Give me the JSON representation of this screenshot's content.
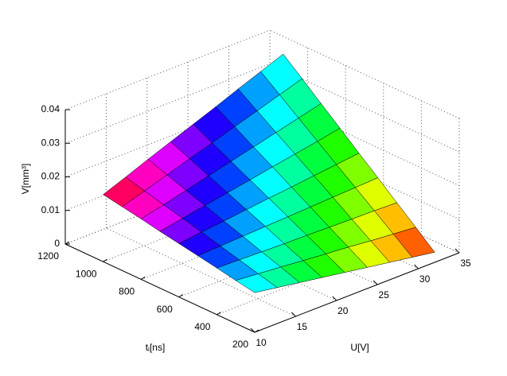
{
  "chart_data": {
    "type": "surface",
    "xlabel": "U[V]",
    "ylabel": "tᵢ[ns]",
    "zlabel": "V[mm³]",
    "x": [
      10,
      12.75,
      15.5,
      18.25,
      21,
      23.75,
      26.5,
      29.25,
      32
    ],
    "y": [
      200,
      300,
      400,
      500,
      600,
      700,
      800,
      900,
      1000
    ],
    "z": [
      [
        0.0118,
        0.0107,
        0.0096,
        0.0085,
        0.0074,
        0.0063,
        0.0052,
        0.0041,
        0.003
      ],
      [
        0.0128,
        0.0122,
        0.0116,
        0.0109,
        0.0103,
        0.0097,
        0.009,
        0.0084,
        0.0078
      ],
      [
        0.0139,
        0.0137,
        0.0135,
        0.0133,
        0.0132,
        0.013,
        0.0128,
        0.0127,
        0.0125
      ],
      [
        0.0149,
        0.0152,
        0.0155,
        0.0158,
        0.0161,
        0.0164,
        0.0167,
        0.017,
        0.0173
      ],
      [
        0.0159,
        0.0167,
        0.0174,
        0.0182,
        0.019,
        0.0197,
        0.0205,
        0.0212,
        0.022
      ],
      [
        0.0169,
        0.0182,
        0.0194,
        0.0206,
        0.0218,
        0.0231,
        0.0243,
        0.0255,
        0.0268
      ],
      [
        0.018,
        0.0196,
        0.0213,
        0.023,
        0.0247,
        0.0264,
        0.0281,
        0.0298,
        0.0315
      ],
      [
        0.019,
        0.0211,
        0.0233,
        0.0255,
        0.0276,
        0.0298,
        0.0319,
        0.0341,
        0.0363
      ],
      [
        0.02,
        0.0226,
        0.0253,
        0.0279,
        0.0305,
        0.0331,
        0.0358,
        0.0384,
        0.041
      ]
    ],
    "xlim": [
      10,
      35
    ],
    "xticks": [
      10,
      15,
      20,
      25,
      30,
      35
    ],
    "ylim": [
      200,
      1200
    ],
    "yticks": [
      200,
      400,
      600,
      800,
      1000,
      1200
    ],
    "zlim": [
      0,
      0.04
    ],
    "zticks": [
      0,
      0.01,
      0.02,
      0.03,
      0.04
    ],
    "colormap": "hsv",
    "grid": true
  }
}
